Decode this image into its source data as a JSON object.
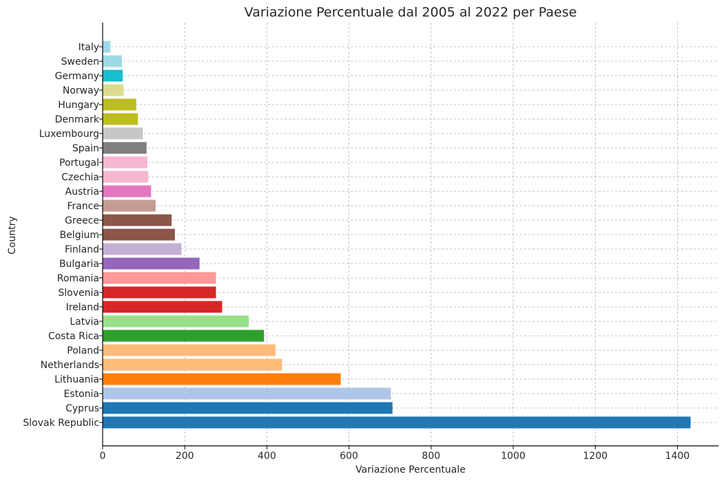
{
  "chart_data": {
    "type": "bar",
    "orientation": "horizontal",
    "title": "Variazione Percentuale dal 2005 al 2022 per Paese",
    "xlabel": "Variazione Percentuale",
    "ylabel": "Country",
    "xlim": [
      0,
      1500
    ],
    "xticks": [
      0,
      200,
      400,
      600,
      800,
      1000,
      1200,
      1400
    ],
    "xtick_labels": [
      "0",
      "200",
      "400",
      "600",
      "800",
      "1000",
      "1200",
      "1400"
    ],
    "grid": true,
    "categories": [
      "Slovak Republic",
      "Cyprus",
      "Estonia",
      "Lithuania",
      "Netherlands",
      "Poland",
      "Costa Rica",
      "Latvia",
      "Ireland",
      "Slovenia",
      "Romania",
      "Bulgaria",
      "Finland",
      "Belgium",
      "Greece",
      "France",
      "Austria",
      "Czechia",
      "Portugal",
      "Spain",
      "Luxembourg",
      "Denmark",
      "Hungary",
      "Norway",
      "Germany",
      "Sweden",
      "Italy"
    ],
    "values": [
      1432,
      706,
      702,
      580,
      437,
      421,
      393,
      356,
      291,
      276,
      276,
      236,
      192,
      176,
      168,
      129,
      118,
      111,
      109,
      107,
      98,
      86,
      82,
      51,
      49,
      47,
      19
    ],
    "colors": [
      "#1f77b4",
      "#1f77b4",
      "#aec7e8",
      "#ff7f0e",
      "#ffbb78",
      "#ffbb78",
      "#2ca02c",
      "#98df8a",
      "#d62728",
      "#d62728",
      "#ff9896",
      "#9467bd",
      "#c5b0d5",
      "#8c564b",
      "#8c564b",
      "#c49c94",
      "#e377c2",
      "#f7b6d2",
      "#f7b6d2",
      "#7f7f7f",
      "#c7c7c7",
      "#bcbd22",
      "#bcbd22",
      "#dbdb8d",
      "#17becf",
      "#9edae5",
      "#9edae5"
    ]
  }
}
